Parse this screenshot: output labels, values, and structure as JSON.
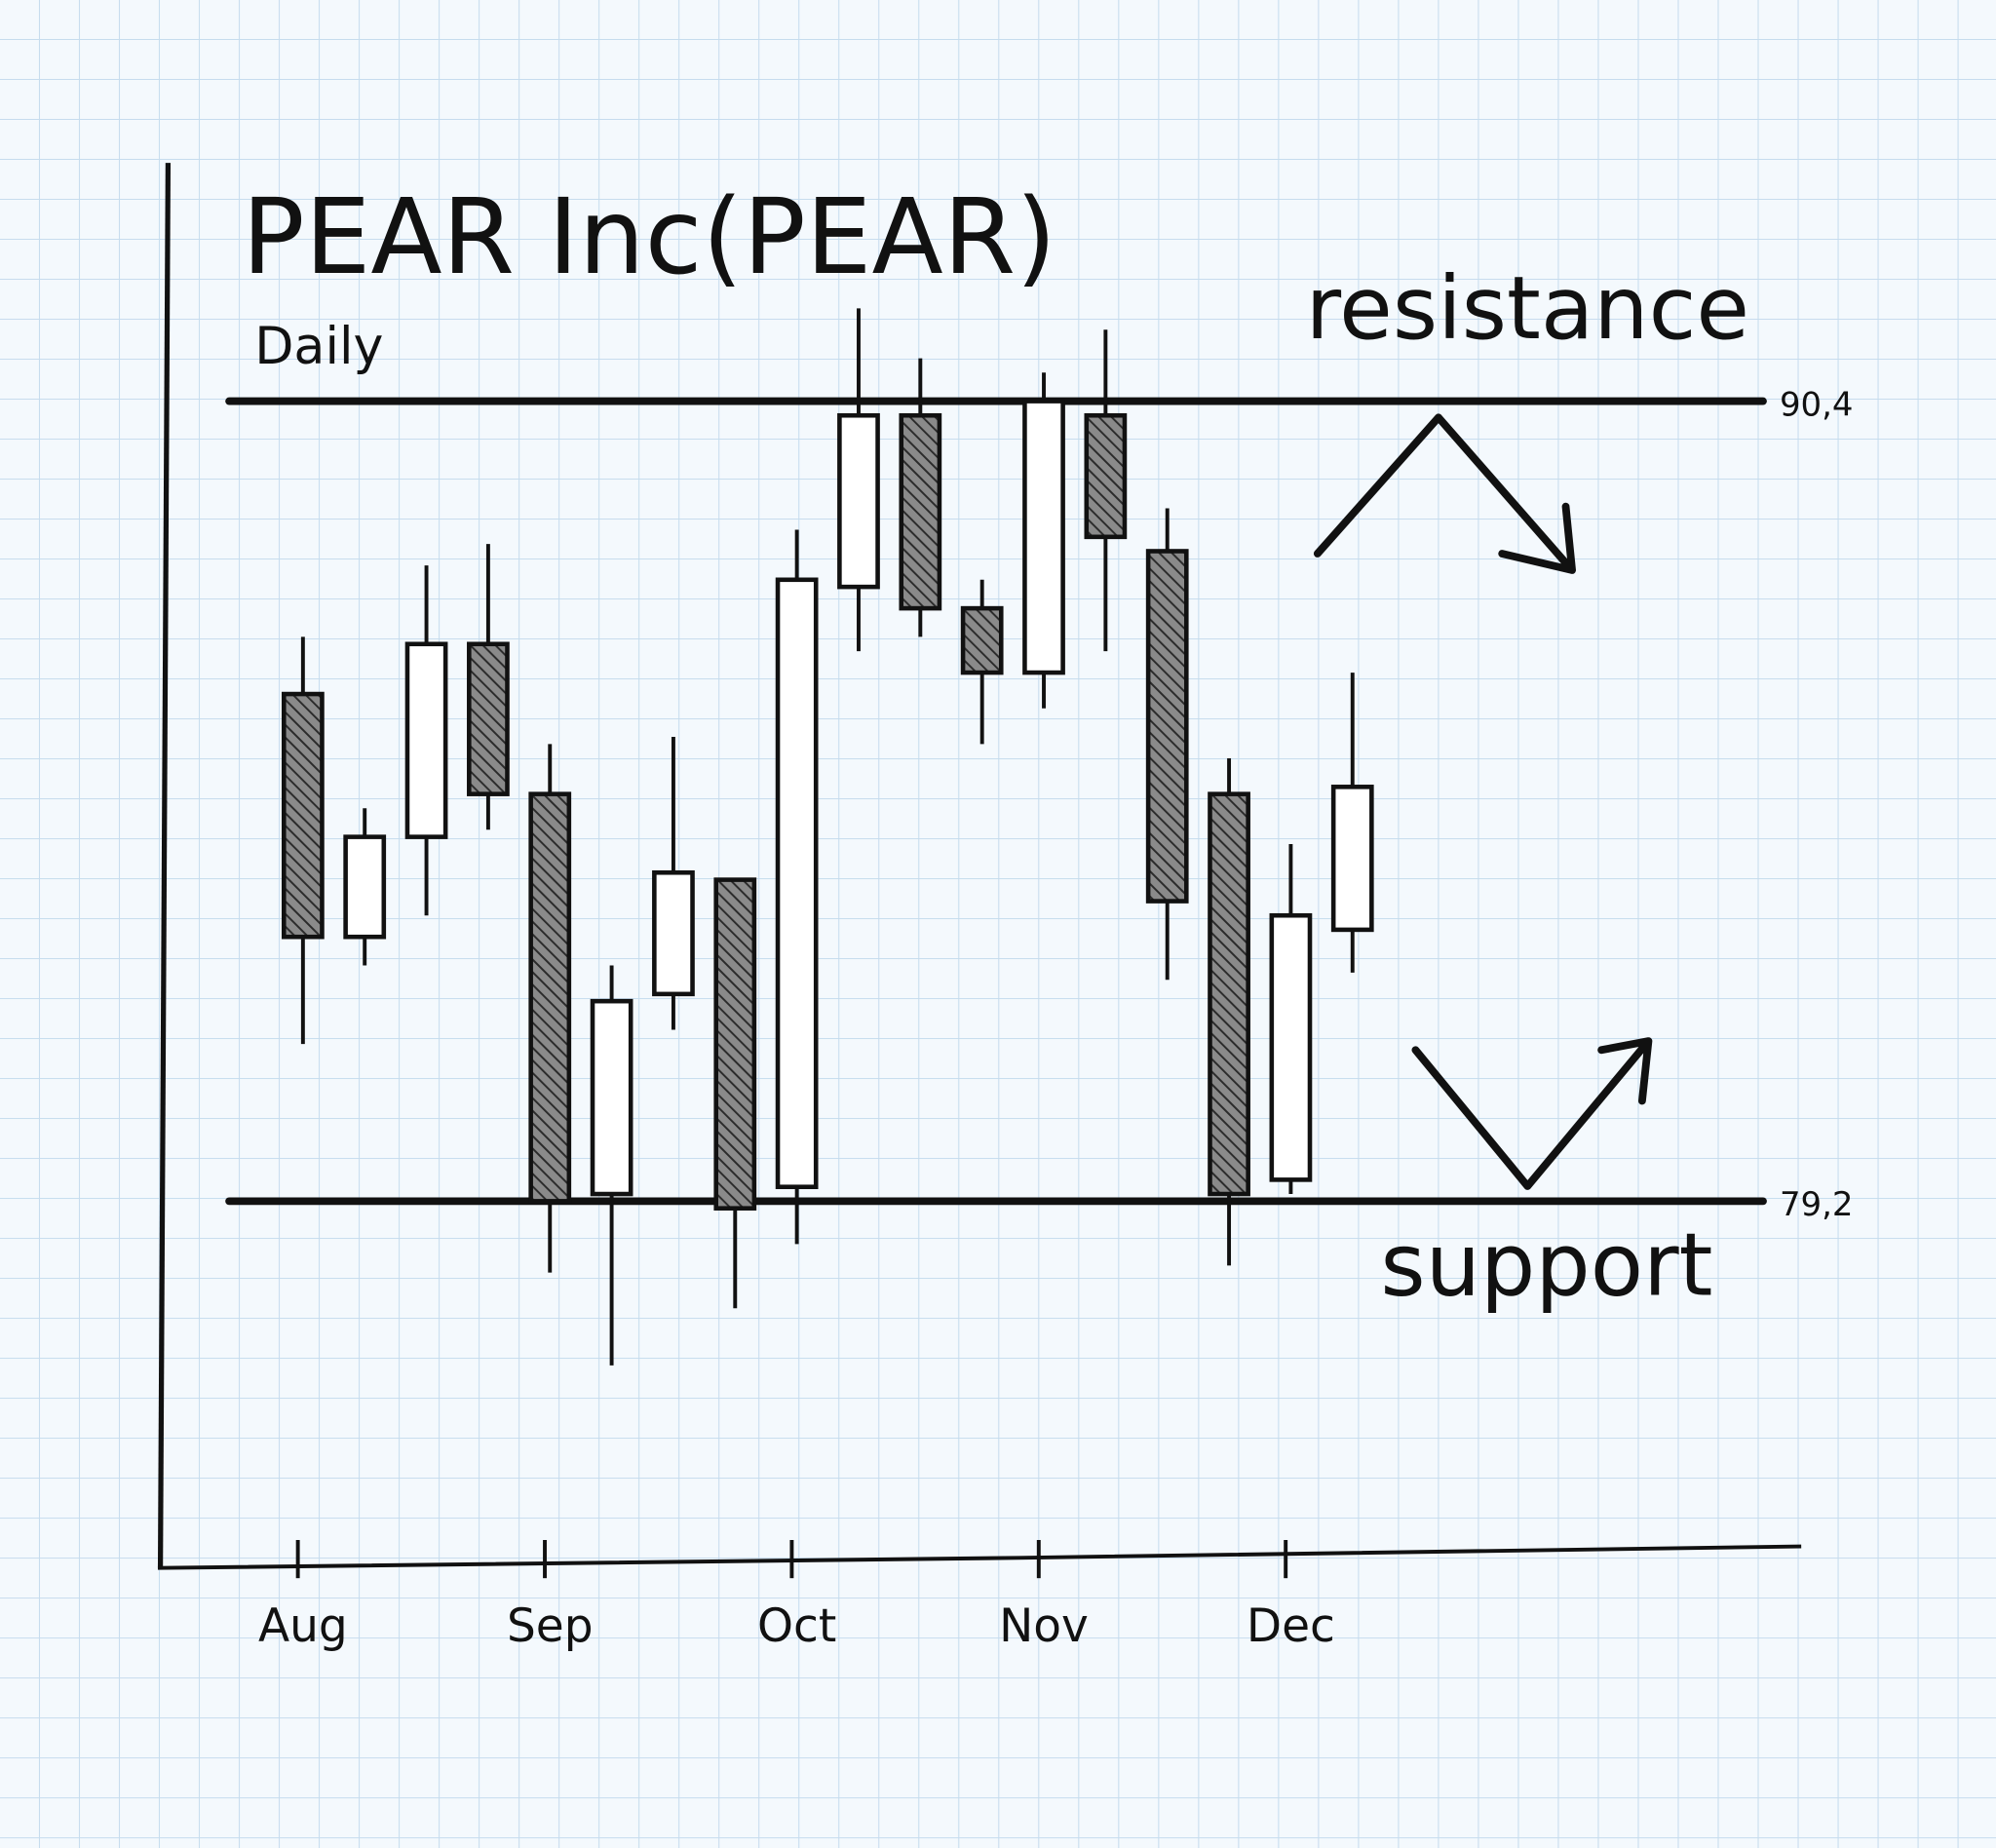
{
  "chart_data": {
    "type": "candlestick",
    "title": "PEAR Inc(PEAR)",
    "subtitle": "Daily",
    "categories": [
      "Aug",
      null,
      null,
      null,
      "Sep",
      null,
      null,
      null,
      "Oct",
      null,
      null,
      null,
      "Nov",
      null,
      null,
      null,
      "Dec",
      null
    ],
    "open": [
      86.3,
      82.9,
      84.3,
      87.0,
      84.9,
      79.3,
      82.1,
      83.7,
      79.4,
      87.8,
      90.2,
      87.5,
      86.6,
      90.2,
      88.3,
      84.9,
      79.5,
      83.0
    ],
    "high": [
      87.1,
      84.7,
      88.1,
      88.4,
      85.6,
      82.5,
      85.7,
      83.7,
      88.6,
      91.7,
      91.0,
      87.9,
      90.8,
      91.4,
      88.9,
      85.4,
      84.2,
      86.6
    ],
    "low": [
      81.4,
      82.5,
      83.2,
      84.4,
      78.2,
      76.9,
      81.6,
      77.7,
      78.6,
      86.9,
      87.1,
      85.6,
      86.1,
      86.9,
      82.3,
      78.3,
      79.3,
      82.4
    ],
    "close": [
      82.9,
      84.3,
      87.0,
      84.9,
      79.2,
      82.0,
      83.8,
      79.1,
      87.9,
      90.2,
      87.5,
      86.6,
      90.4,
      88.5,
      83.4,
      79.3,
      83.2,
      85.0
    ],
    "ylim": [
      74.1,
      93.7
    ],
    "color": "#111111",
    "reference_lines": [
      {
        "name": "resistance",
        "value": 90.4,
        "label": "90,4"
      },
      {
        "name": "support",
        "value": 79.2,
        "label": "79,2"
      }
    ]
  }
}
